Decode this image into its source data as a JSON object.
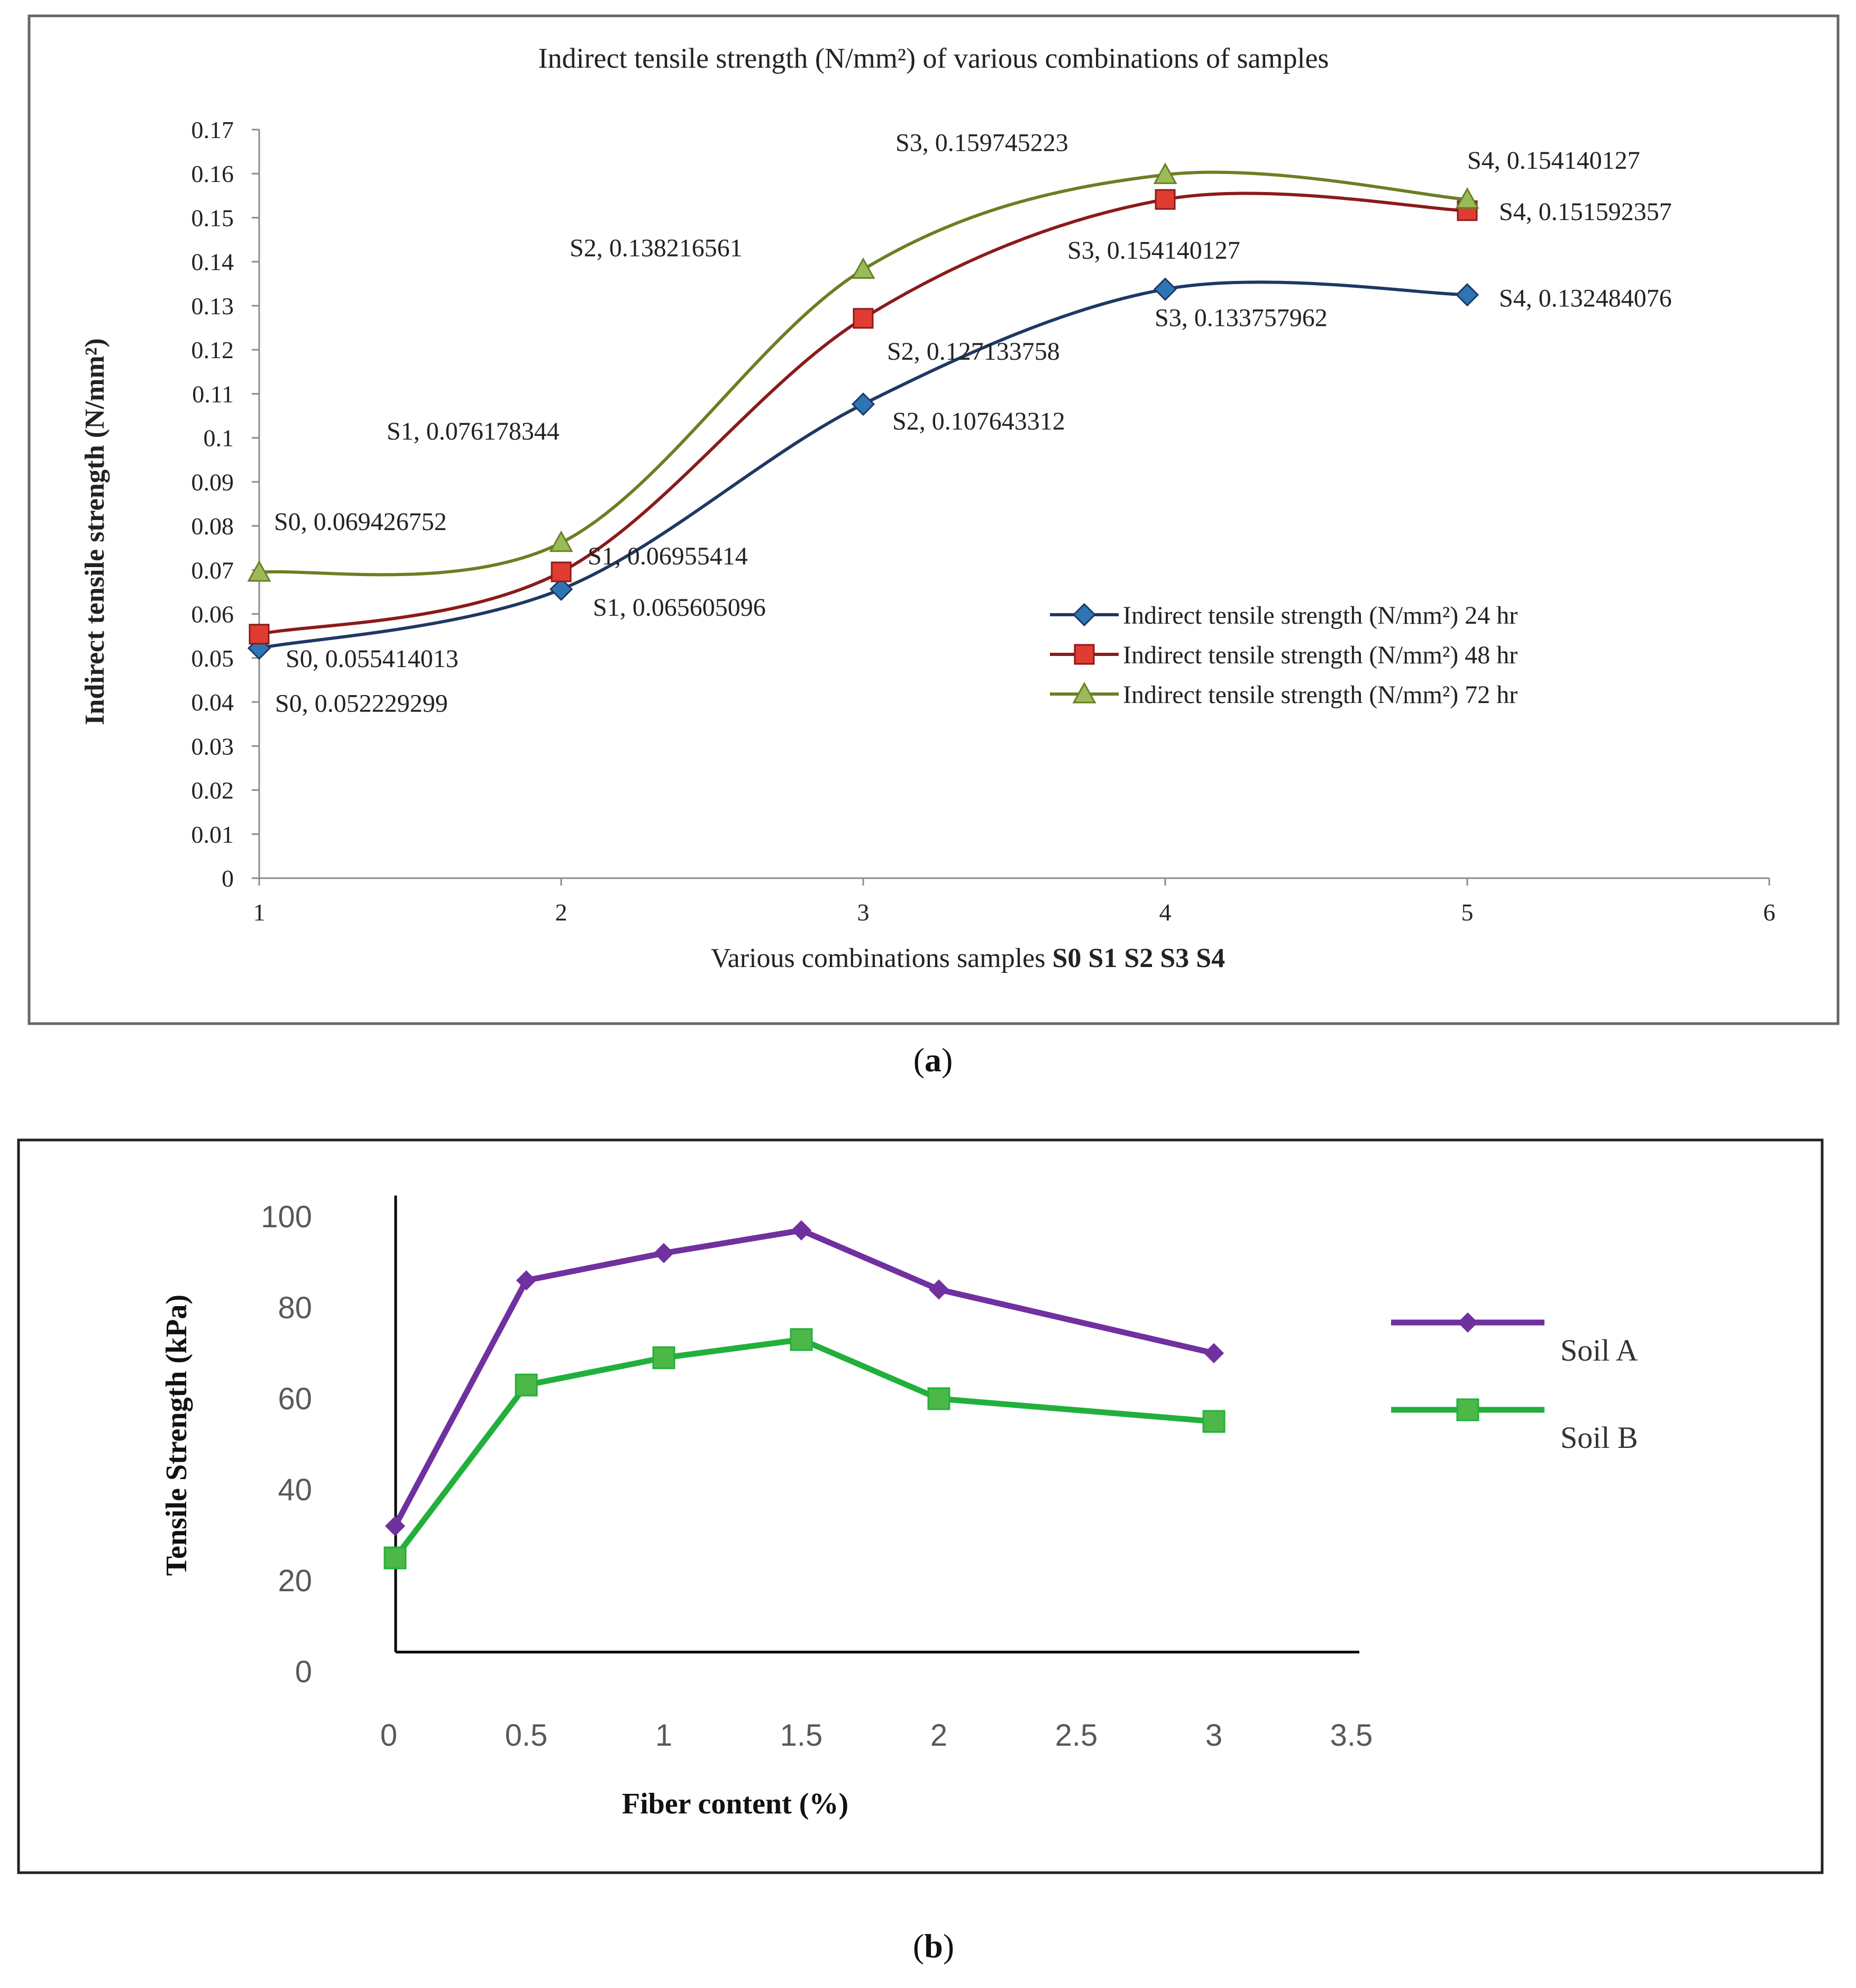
{
  "chart_data": [
    {
      "type": "line",
      "panel_label": "a",
      "title": "Indirect tensile strength  (N/mm²) of various combinations  of samples",
      "xlabel_prefix": "Various combinations samples ",
      "xlabel_bold": "S0 S1 S2 S3 S4",
      "ylabel": "Indirect tensile strength  (N/mm²)",
      "xlim": [
        1,
        6
      ],
      "ylim": [
        0,
        0.17
      ],
      "xticks": [
        "1",
        "2",
        "3",
        "4",
        "5",
        "6"
      ],
      "yticks": [
        "0",
        "0.01",
        "0.02",
        "0.03",
        "0.04",
        "0.05",
        "0.06",
        "0.07",
        "0.08",
        "0.09",
        "0.1",
        "0.11",
        "0.12",
        "0.13",
        "0.14",
        "0.15",
        "0.16",
        "0.17"
      ],
      "grid": false,
      "legend_position": "right-middle",
      "x": [
        1,
        2,
        3,
        4,
        5
      ],
      "series": [
        {
          "name": "Indirect tensile strength  (N/mm²) 24 hr",
          "color": "#1f3864",
          "marker_color": "#2e75b6",
          "marker": "diamond",
          "values": [
            0.052229299,
            0.065605096,
            0.107643312,
            0.133757962,
            0.132484076
          ],
          "labels": [
            "S0, 0.052229299",
            "S1, 0.065605096",
            "S2, 0.107643312",
            "S3, 0.133757962",
            "S4, 0.132484076"
          ]
        },
        {
          "name": "Indirect tensile strength  (N/mm²) 48 hr",
          "color": "#8b1a1a",
          "marker_color": "#e03c31",
          "marker": "square",
          "values": [
            0.055414013,
            0.06955414,
            0.127133758,
            0.154140127,
            0.151592357
          ],
          "labels": [
            "S0, 0.055414013",
            "S1, 0.06955414",
            "S2, 0.127133758",
            "S3, 0.154140127",
            "S4, 0.151592357"
          ]
        },
        {
          "name": "Indirect tensile strength  (N/mm²) 72 hr",
          "color": "#6b7f22",
          "marker_color": "#9bbb59",
          "marker": "triangle",
          "values": [
            0.069426752,
            0.076178344,
            0.138216561,
            0.159745223,
            0.154140127
          ],
          "labels": [
            "S0, 0.069426752",
            "S1, 0.076178344",
            "S2, 0.138216561",
            "S3, 0.159745223",
            "S4, 0.154140127"
          ]
        }
      ]
    },
    {
      "type": "line",
      "panel_label": "b",
      "title": "",
      "xlabel": "Fiber content (%)",
      "ylabel": "Tensile Strength (kPa)",
      "xlim": [
        0,
        3.5
      ],
      "ylim": [
        0,
        100
      ],
      "xticks": [
        "0",
        "0.5",
        "1",
        "1.5",
        "2",
        "2.5",
        "3",
        "3.5"
      ],
      "yticks": [
        "0",
        "20",
        "40",
        "60",
        "80",
        "100"
      ],
      "grid": false,
      "legend_position": "right",
      "x": [
        0,
        0.5,
        1,
        1.5,
        2,
        3
      ],
      "series": [
        {
          "name": "Soil A",
          "color": "#7030a0",
          "marker": "diamond",
          "values": [
            32,
            86,
            92,
            97,
            84,
            70
          ]
        },
        {
          "name": "Soil B",
          "color": "#22b03c",
          "marker_color": "#4cb848",
          "marker": "square",
          "values": [
            25,
            63,
            69,
            73,
            60,
            55
          ]
        }
      ]
    }
  ],
  "captions": {
    "a": "a",
    "b": "b"
  }
}
